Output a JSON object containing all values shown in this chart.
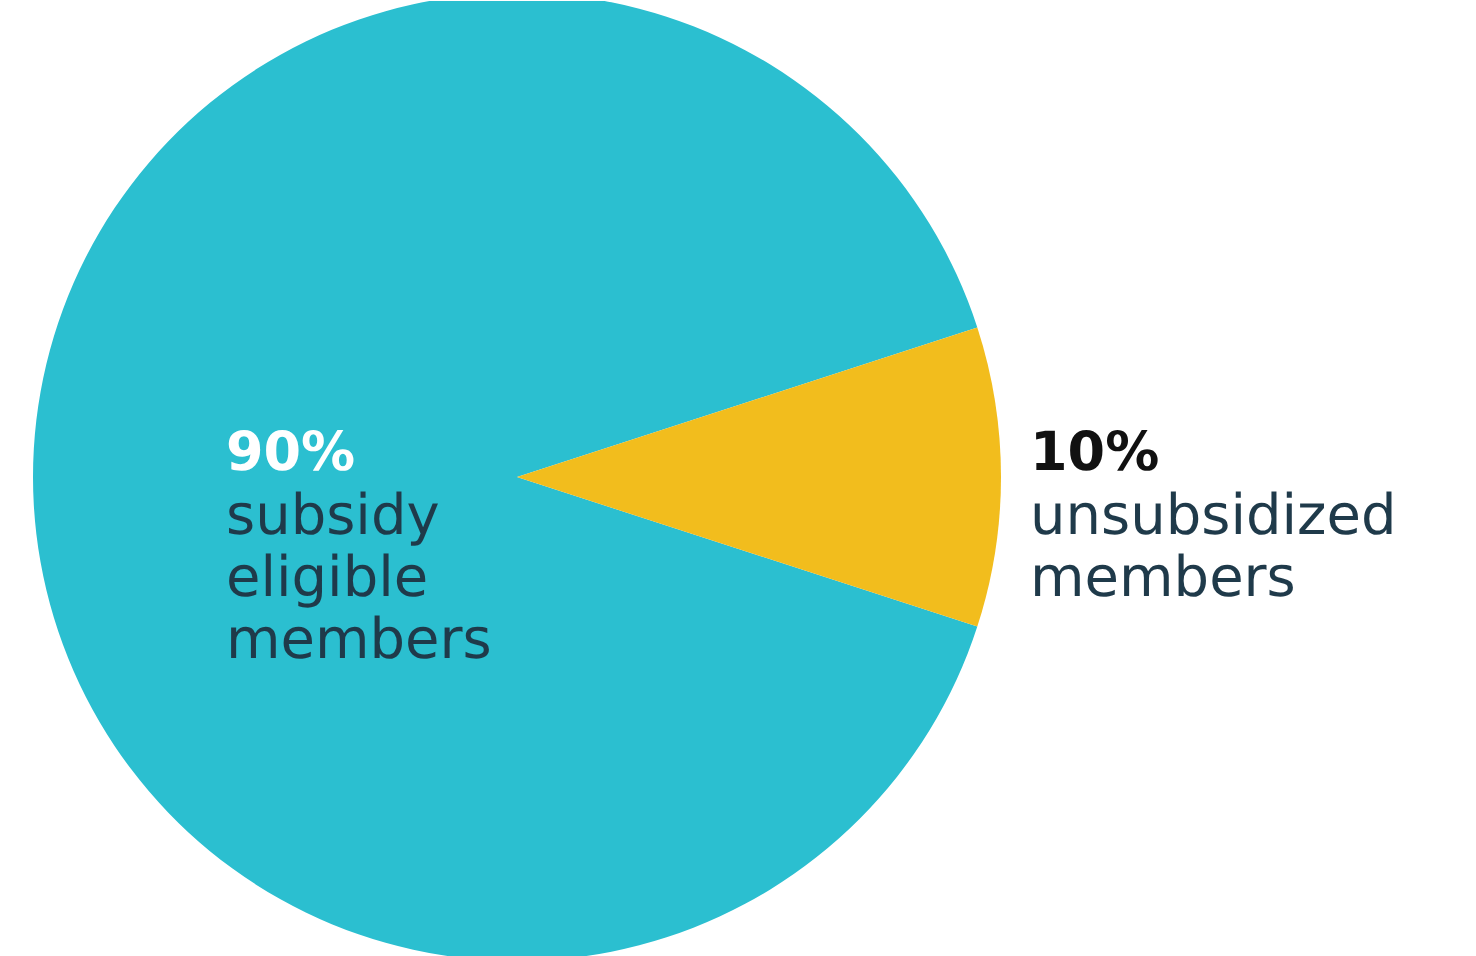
{
  "chart_data": {
    "type": "pie",
    "categories": [
      "subsidy eligible members",
      "unsubsidized members"
    ],
    "values": [
      90,
      10
    ],
    "colors": [
      "#2bbfd0",
      "#f2bd1d"
    ],
    "value_labels": [
      "90%",
      "10%"
    ]
  }
}
